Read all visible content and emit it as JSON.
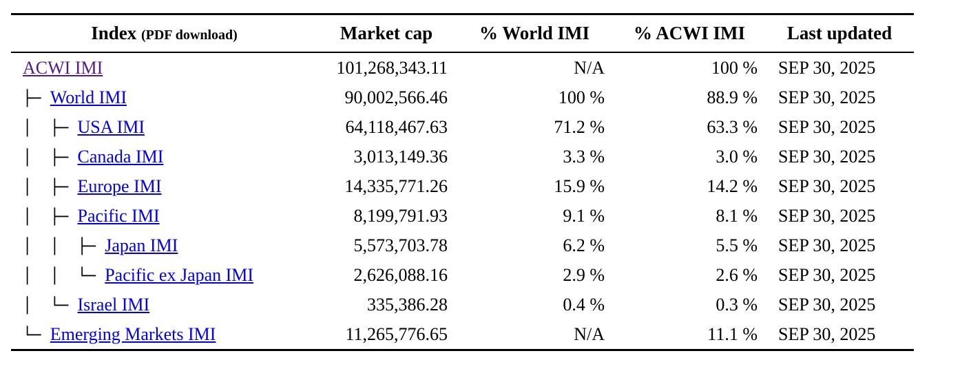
{
  "colors": {
    "link": "#0000EE",
    "visited_link": "#551A8B",
    "text": "#000000",
    "background": "#ffffff",
    "rule": "#000000"
  },
  "table": {
    "headers": {
      "index": "Index",
      "index_note": "(PDF download)",
      "market_cap": "Market cap",
      "pct_world": "% World IMI",
      "pct_acwi": "% ACWI IMI",
      "last_updated": "Last updated"
    },
    "rows": [
      {
        "prefix": "",
        "label": "ACWI IMI",
        "visited": true,
        "market_cap": "101,268,343.11",
        "pct_world": "N/A",
        "pct_acwi": "100 %",
        "last_updated": "SEP 30, 2025"
      },
      {
        "prefix": "├─ ",
        "label": "World IMI",
        "visited": false,
        "market_cap": "90,002,566.46",
        "pct_world": "100 %",
        "pct_acwi": "88.9 %",
        "last_updated": "SEP 30, 2025"
      },
      {
        "prefix": "│  ├─ ",
        "label": "USA IMI",
        "visited": false,
        "market_cap": "64,118,467.63",
        "pct_world": "71.2 %",
        "pct_acwi": "63.3 %",
        "last_updated": "SEP 30, 2025"
      },
      {
        "prefix": "│  ├─ ",
        "label": "Canada IMI",
        "visited": false,
        "market_cap": "3,013,149.36",
        "pct_world": "3.3 %",
        "pct_acwi": "3.0 %",
        "last_updated": "SEP 30, 2025"
      },
      {
        "prefix": "│  ├─ ",
        "label": "Europe IMI",
        "visited": false,
        "market_cap": "14,335,771.26",
        "pct_world": "15.9 %",
        "pct_acwi": "14.2 %",
        "last_updated": "SEP 30, 2025"
      },
      {
        "prefix": "│  ├─ ",
        "label": "Pacific IMI",
        "visited": false,
        "market_cap": "8,199,791.93",
        "pct_world": "9.1 %",
        "pct_acwi": "8.1 %",
        "last_updated": "SEP 30, 2025"
      },
      {
        "prefix": "│  │  ├─ ",
        "label": "Japan IMI",
        "visited": false,
        "market_cap": "5,573,703.78",
        "pct_world": "6.2 %",
        "pct_acwi": "5.5 %",
        "last_updated": "SEP 30, 2025"
      },
      {
        "prefix": "│  │  └─ ",
        "label": "Pacific ex Japan IMI",
        "visited": false,
        "market_cap": "2,626,088.16",
        "pct_world": "2.9 %",
        "pct_acwi": "2.6 %",
        "last_updated": "SEP 30, 2025"
      },
      {
        "prefix": "│  └─ ",
        "label": "Israel IMI",
        "visited": false,
        "market_cap": "335,386.28",
        "pct_world": "0.4 %",
        "pct_acwi": "0.3 %",
        "last_updated": "SEP 30, 2025"
      },
      {
        "prefix": "└─ ",
        "label": "Emerging Markets IMI",
        "visited": false,
        "market_cap": "11,265,776.65",
        "pct_world": "N/A",
        "pct_acwi": "11.1 %",
        "last_updated": "SEP 30, 2025"
      }
    ]
  }
}
